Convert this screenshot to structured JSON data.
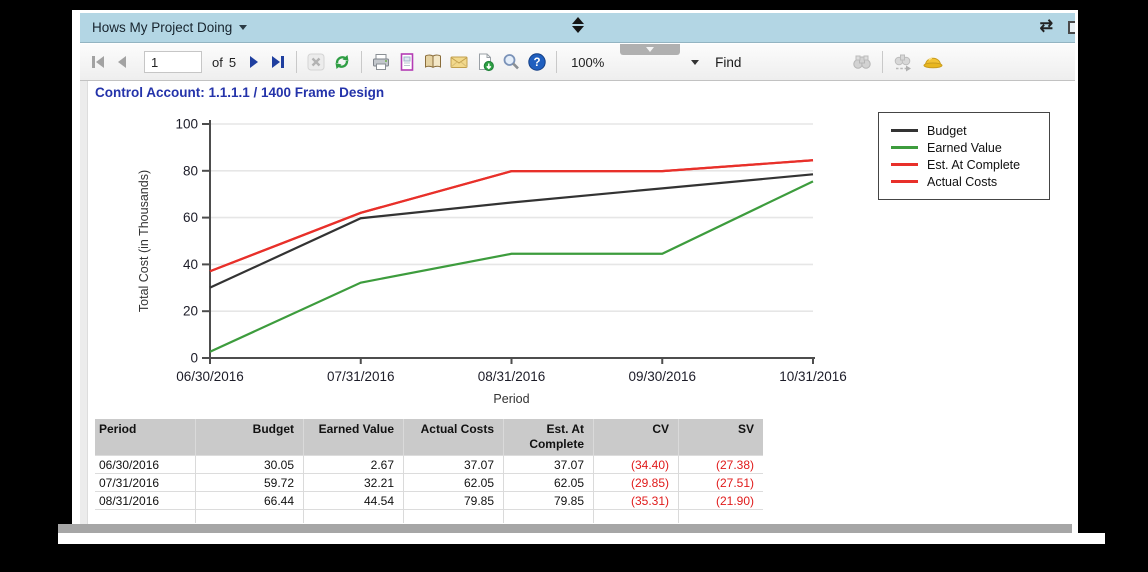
{
  "window": {
    "title": "Hows My Project Doing",
    "icons": {
      "title_caret": "caret-down",
      "collapse": "up-down-arrows",
      "refresh_glyph": "⇄"
    }
  },
  "toolbar": {
    "page_current": "1",
    "of_label": "of",
    "page_total": "5",
    "zoom_value": "100%",
    "find_label": "Find",
    "icon_names": [
      "first-page",
      "previous-page",
      "next-page",
      "last-page",
      "cancel",
      "refresh",
      "print",
      "print-layout",
      "page-setup",
      "email-export",
      "save-export",
      "magnifier",
      "help",
      "find-binoculars",
      "find-next-binoculars",
      "hard-hat"
    ]
  },
  "report": {
    "title": "Control Account: 1.1.1.1 / 1400 Frame Design"
  },
  "chart_data": {
    "type": "line",
    "title": "",
    "xlabel": "Period",
    "ylabel": "Total Cost (in Thousands)",
    "ylim": [
      0,
      100
    ],
    "yticks": [
      0,
      20,
      40,
      60,
      80,
      100
    ],
    "grid": true,
    "legend_position": "right",
    "categories": [
      "06/30/2016",
      "07/31/2016",
      "08/31/2016",
      "09/30/2016",
      "10/31/2016"
    ],
    "series": [
      {
        "name": "Budget",
        "color": "#333333",
        "values": [
          30.05,
          59.72,
          66.44,
          72.5,
          78.5
        ]
      },
      {
        "name": "Earned Value",
        "color": "#3d9c3d",
        "values": [
          2.67,
          32.21,
          44.54,
          44.54,
          75.5
        ]
      },
      {
        "name": "Est. At Complete",
        "color": "#e8302a",
        "values": [
          37.07,
          62.05,
          79.85,
          79.85,
          84.5
        ]
      },
      {
        "name": "Actual Costs",
        "color": "#e8302a",
        "values": [
          37.07,
          62.05,
          79.85,
          79.85,
          84.5
        ]
      }
    ]
  },
  "table": {
    "headers": [
      "Period",
      "Budget",
      "Earned Value",
      "Actual Costs",
      "Est. At Complete",
      "CV",
      "SV"
    ],
    "negative_color": "#e01b1b",
    "rows": [
      [
        "06/30/2016",
        "30.05",
        "2.67",
        "37.07",
        "37.07",
        "(34.40)",
        "(27.38)"
      ],
      [
        "07/31/2016",
        "59.72",
        "32.21",
        "62.05",
        "62.05",
        "(29.85)",
        "(27.51)"
      ],
      [
        "08/31/2016",
        "66.44",
        "44.54",
        "79.85",
        "79.85",
        "(35.31)",
        "(21.90)"
      ]
    ]
  },
  "colors": {
    "titlebar_bg": "#b3d6e4",
    "report_title": "#2433aa",
    "table_header_bg": "#cacaca",
    "axis": "#4d4d4d",
    "gridline": "#e6e6e6"
  }
}
